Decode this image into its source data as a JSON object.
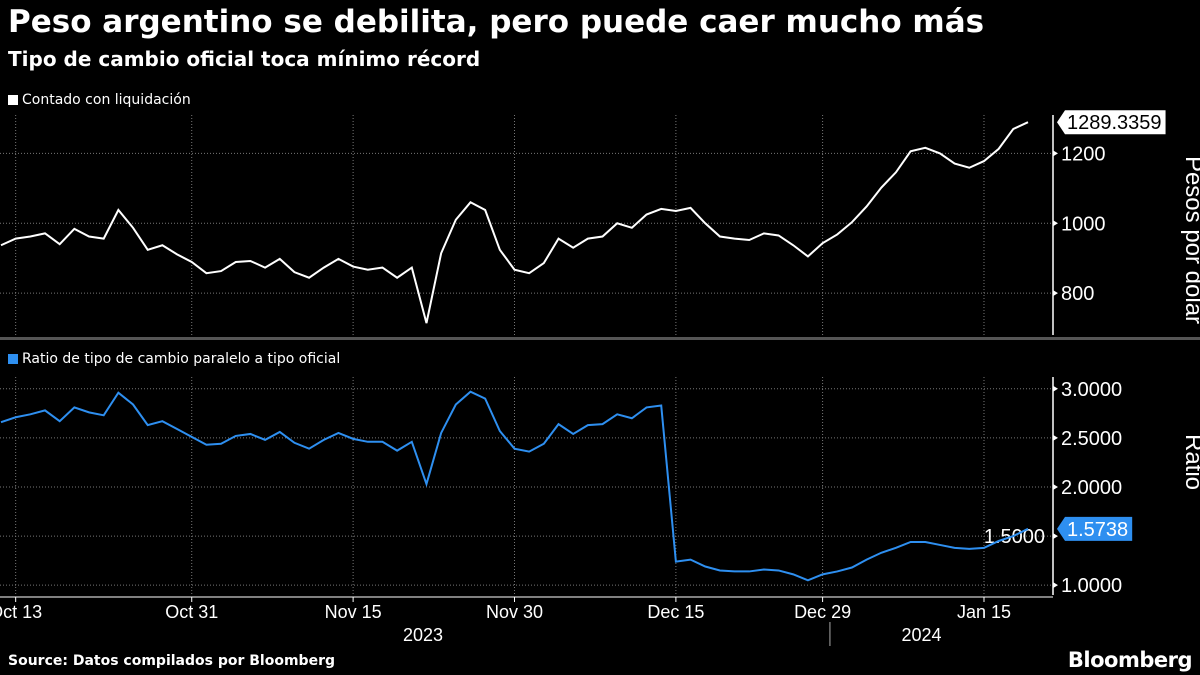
{
  "title": "Peso argentino se debilita, pero puede caer mucho más",
  "subtitle": "Tipo de cambio oficial toca mínimo récord",
  "source": "Source: Datos compilados por Bloomberg",
  "logo": "Bloomberg",
  "colors": {
    "background": "#000000",
    "series1": "#ffffff",
    "series2": "#2e8ff0"
  },
  "chart_data": [
    {
      "type": "line",
      "legend": "Contado con liquidación",
      "ylabel": "Pesos por dólar",
      "ylim": [
        680,
        1310
      ],
      "yticks": [
        800,
        1000,
        1200
      ],
      "ytick_labels": [
        "800",
        "1000",
        "1200"
      ],
      "last_value_label": "1289.3359",
      "grid": true,
      "x": [
        "2023-10-12",
        "2023-10-13",
        "2023-10-16",
        "2023-10-17",
        "2023-10-18",
        "2023-10-19",
        "2023-10-20",
        "2023-10-23",
        "2023-10-24",
        "2023-10-25",
        "2023-10-26",
        "2023-10-27",
        "2023-10-30",
        "2023-10-31",
        "2023-11-01",
        "2023-11-02",
        "2023-11-03",
        "2023-11-06",
        "2023-11-07",
        "2023-11-08",
        "2023-11-09",
        "2023-11-10",
        "2023-11-13",
        "2023-11-14",
        "2023-11-15",
        "2023-11-16",
        "2023-11-17",
        "2023-11-20",
        "2023-11-21",
        "2023-11-22",
        "2023-11-23",
        "2023-11-24",
        "2023-11-27",
        "2023-11-28",
        "2023-11-29",
        "2023-11-30",
        "2023-12-01",
        "2023-12-04",
        "2023-12-05",
        "2023-12-06",
        "2023-12-07",
        "2023-12-08",
        "2023-12-11",
        "2023-12-12",
        "2023-12-13",
        "2023-12-14",
        "2023-12-15",
        "2023-12-18",
        "2023-12-19",
        "2023-12-20",
        "2023-12-21",
        "2023-12-22",
        "2023-12-25",
        "2023-12-26",
        "2023-12-27",
        "2023-12-28",
        "2023-12-29",
        "2024-01-01",
        "2024-01-02",
        "2024-01-03",
        "2024-01-04",
        "2024-01-05",
        "2024-01-08",
        "2024-01-09",
        "2024-01-10",
        "2024-01-11",
        "2024-01-12",
        "2024-01-15",
        "2024-01-16",
        "2024-01-17",
        "2024-01-18"
      ],
      "values": [
        937,
        956,
        962,
        971,
        940,
        984,
        962,
        956,
        1038,
        987,
        924,
        937,
        911,
        889,
        857,
        863,
        889,
        892,
        873,
        898,
        860,
        844,
        873,
        898,
        876,
        867,
        873,
        844,
        873,
        714,
        914,
        1010,
        1060,
        1038,
        924,
        867,
        857,
        886,
        956,
        930,
        956,
        962,
        1000,
        987,
        1025,
        1041,
        1035,
        1044,
        1000,
        962,
        956,
        952,
        971,
        965,
        937,
        905,
        943,
        968,
        1003,
        1048,
        1102,
        1146,
        1206,
        1216,
        1200,
        1171,
        1159,
        1178,
        1213,
        1270,
        1289.3359
      ]
    },
    {
      "type": "line",
      "legend": "Ratio de tipo de cambio paralelo a tipo oficial",
      "ylabel": "Ratio",
      "ylim": [
        0.9,
        3.12
      ],
      "yticks": [
        1,
        1.5,
        2,
        2.5,
        3
      ],
      "ytick_labels": [
        "1.0000",
        "1.5000",
        "2.0000",
        "2.5000",
        "3.0000"
      ],
      "last_value_label": "1.5738",
      "grid": true,
      "values": [
        2.66,
        2.71,
        2.74,
        2.78,
        2.67,
        2.81,
        2.76,
        2.73,
        2.96,
        2.84,
        2.63,
        2.67,
        2.59,
        2.51,
        2.43,
        2.44,
        2.52,
        2.54,
        2.48,
        2.56,
        2.45,
        2.39,
        2.48,
        2.55,
        2.49,
        2.46,
        2.46,
        2.37,
        2.46,
        2.03,
        2.55,
        2.84,
        2.97,
        2.9,
        2.57,
        2.39,
        2.36,
        2.44,
        2.64,
        2.54,
        2.63,
        2.64,
        2.74,
        2.7,
        2.81,
        2.83,
        1.24,
        1.26,
        1.19,
        1.15,
        1.14,
        1.14,
        1.16,
        1.15,
        1.11,
        1.05,
        1.11,
        1.14,
        1.18,
        1.26,
        1.33,
        1.38,
        1.44,
        1.44,
        1.41,
        1.38,
        1.37,
        1.38,
        1.45,
        1.5,
        1.5738
      ]
    }
  ],
  "xaxis": {
    "ticks": [
      {
        "label": "Oct 13",
        "date": "2023-10-13"
      },
      {
        "label": "Oct 31",
        "date": "2023-10-31"
      },
      {
        "label": "Nov 15",
        "date": "2023-11-15"
      },
      {
        "label": "Nov 30",
        "date": "2023-11-30"
      },
      {
        "label": "Dec 15",
        "date": "2023-12-15"
      },
      {
        "label": "Dec 29",
        "date": "2023-12-29"
      },
      {
        "label": "Jan 15",
        "date": "2024-01-15"
      }
    ],
    "years": [
      "2023",
      "2024"
    ]
  }
}
